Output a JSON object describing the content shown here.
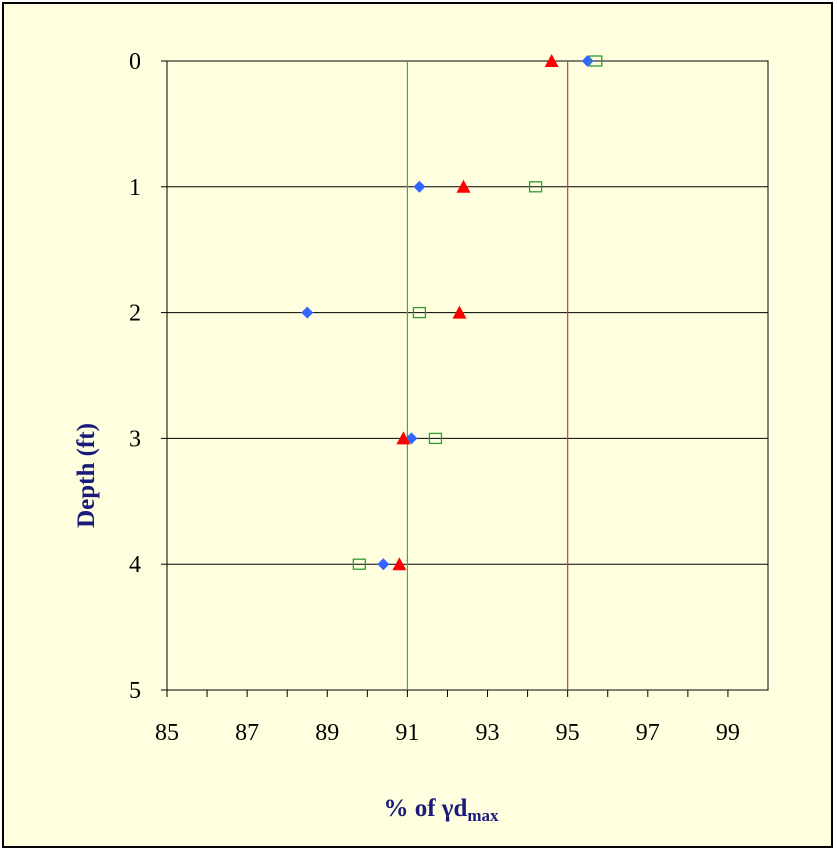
{
  "chart_data": {
    "type": "scatter",
    "title": "",
    "xlabel": "% of γd",
    "xlabel_subscript": "max",
    "ylabel": "Depth (ft)",
    "xlim": [
      85,
      100
    ],
    "ylim": [
      0,
      5
    ],
    "y_inverted": true,
    "x_ticks": [
      "85",
      "87",
      "89",
      "91",
      "93",
      "95",
      "97",
      "99"
    ],
    "y_ticks": [
      "0",
      "1",
      "2",
      "3",
      "4",
      "5"
    ],
    "horizontal_gridlines": [
      0,
      1,
      2,
      3,
      4
    ],
    "reference_lines": [
      {
        "x": 91,
        "color": "#3cb043"
      },
      {
        "x": 95,
        "color": "#e03030"
      }
    ],
    "series": [
      {
        "marker": "diamond",
        "color": "#3366ff",
        "points": [
          {
            "x": 95.5,
            "y": 0
          },
          {
            "x": 91.3,
            "y": 1
          },
          {
            "x": 88.5,
            "y": 2
          },
          {
            "x": 91.1,
            "y": 3
          },
          {
            "x": 90.4,
            "y": 4
          }
        ]
      },
      {
        "marker": "triangle",
        "color": "#ff0000",
        "points": [
          {
            "x": 94.6,
            "y": 0
          },
          {
            "x": 92.4,
            "y": 1
          },
          {
            "x": 92.3,
            "y": 2
          },
          {
            "x": 90.9,
            "y": 3
          },
          {
            "x": 90.8,
            "y": 4
          }
        ]
      },
      {
        "marker": "open-square",
        "color": "#2e9e2e",
        "points": [
          {
            "x": 95.7,
            "y": 0
          },
          {
            "x": 94.2,
            "y": 1
          },
          {
            "x": 91.3,
            "y": 2
          },
          {
            "x": 91.7,
            "y": 3
          },
          {
            "x": 89.8,
            "y": 4
          }
        ]
      }
    ],
    "background": "#ffffe0"
  }
}
